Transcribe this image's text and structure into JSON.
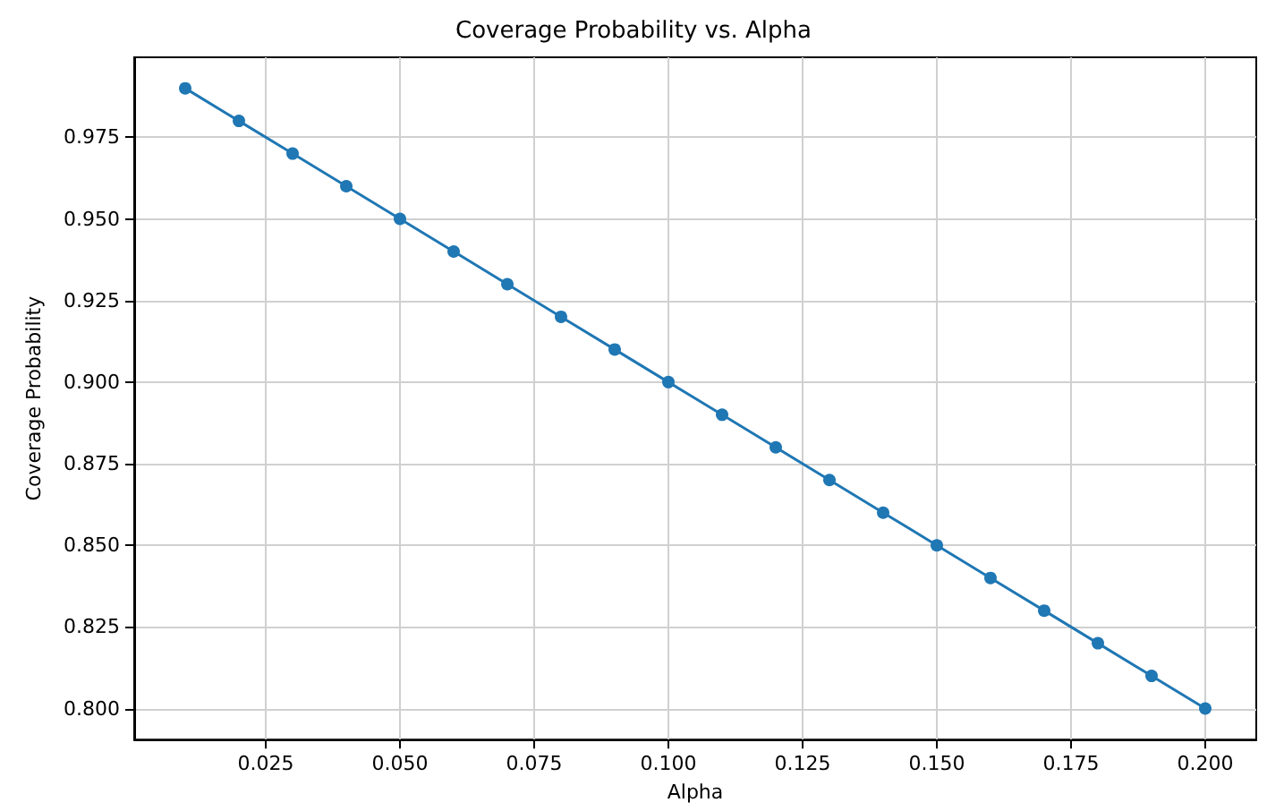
{
  "chart_data": {
    "type": "line",
    "title": "Coverage Probability vs. Alpha",
    "xlabel": "Alpha",
    "ylabel": "Coverage Probability",
    "x": [
      0.01,
      0.02,
      0.03,
      0.04,
      0.05,
      0.06,
      0.07,
      0.08,
      0.09,
      0.1,
      0.11,
      0.12,
      0.13,
      0.14,
      0.15,
      0.16,
      0.17,
      0.18,
      0.19,
      0.2
    ],
    "series": [
      {
        "color": "#1f77b4",
        "values": [
          0.99,
          0.98,
          0.97,
          0.96,
          0.95,
          0.94,
          0.93,
          0.92,
          0.91,
          0.9,
          0.89,
          0.88,
          0.87,
          0.86,
          0.85,
          0.84,
          0.83,
          0.82,
          0.81,
          0.8
        ]
      }
    ],
    "xlim": [
      0.0005,
      0.2095
    ],
    "ylim": [
      0.7905,
      0.9995
    ],
    "xticks": [
      {
        "value": 0.025,
        "label": "0.025"
      },
      {
        "value": 0.05,
        "label": "0.050"
      },
      {
        "value": 0.075,
        "label": "0.075"
      },
      {
        "value": 0.1,
        "label": "0.100"
      },
      {
        "value": 0.125,
        "label": "0.125"
      },
      {
        "value": 0.15,
        "label": "0.150"
      },
      {
        "value": 0.175,
        "label": "0.175"
      },
      {
        "value": 0.2,
        "label": "0.200"
      }
    ],
    "yticks": [
      {
        "value": 0.8,
        "label": "0.800"
      },
      {
        "value": 0.825,
        "label": "0.825"
      },
      {
        "value": 0.85,
        "label": "0.850"
      },
      {
        "value": 0.875,
        "label": "0.875"
      },
      {
        "value": 0.9,
        "label": "0.900"
      },
      {
        "value": 0.925,
        "label": "0.925"
      },
      {
        "value": 0.95,
        "label": "0.950"
      },
      {
        "value": 0.975,
        "label": "0.975"
      }
    ],
    "grid": true,
    "marker": "circle",
    "line_style": "solid"
  }
}
